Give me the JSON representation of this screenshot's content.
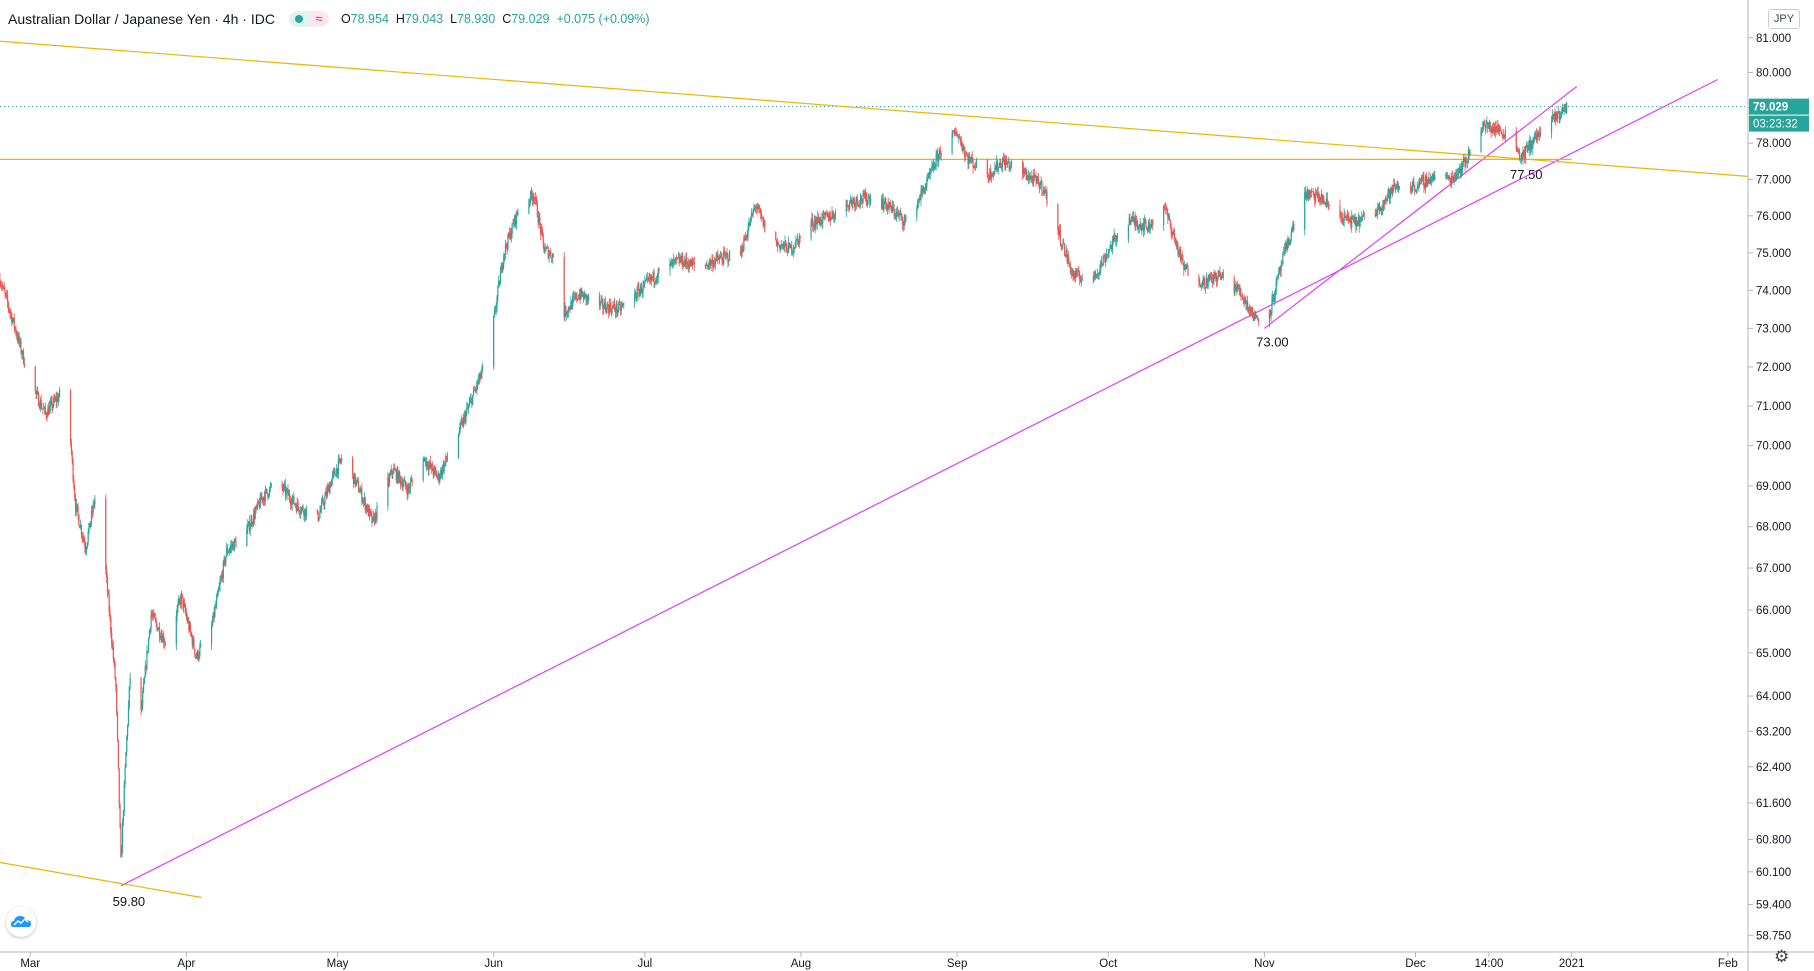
{
  "header": {
    "symbol_title": "Australian Dollar / Japanese Yen · 4h · IDC",
    "o_label": "O",
    "o_value": "78.954",
    "h_label": "H",
    "h_value": "79.043",
    "l_label": "L",
    "l_value": "78.930",
    "c_label": "C",
    "c_value": "79.029",
    "change": "+0.075 (+0.09%)"
  },
  "currency_button": "JPY",
  "countdown": "03:23:32",
  "colors": {
    "up": "#26a69a",
    "down": "#ef5350",
    "support": "#e040fb",
    "resistance": "#f0b400",
    "axis": "#131722"
  },
  "chart_data": {
    "type": "candlestick",
    "timeframe": "4h",
    "last_price": 79.029,
    "y_scale": "log",
    "ylim": [
      58.4,
      81.4
    ],
    "y_ticks": [
      "81.000",
      "80.000",
      "79.000",
      "78.000",
      "77.000",
      "76.000",
      "75.000",
      "74.000",
      "73.000",
      "72.000",
      "71.000",
      "70.000",
      "69.000",
      "68.000",
      "67.000",
      "66.000",
      "65.000",
      "64.000",
      "63.200",
      "62.400",
      "61.600",
      "60.800",
      "60.100",
      "59.400",
      "58.750"
    ],
    "x_ticks": [
      {
        "label": "Mar",
        "date": "2020-03-01"
      },
      {
        "label": "Apr",
        "date": "2020-04-01"
      },
      {
        "label": "May",
        "date": "2020-05-01"
      },
      {
        "label": "Jun",
        "date": "2020-06-01"
      },
      {
        "label": "Jul",
        "date": "2020-07-01"
      },
      {
        "label": "Aug",
        "date": "2020-08-01"
      },
      {
        "label": "Sep",
        "date": "2020-09-01"
      },
      {
        "label": "Oct",
        "date": "2020-10-01"
      },
      {
        "label": "Nov",
        "date": "2020-11-01"
      },
      {
        "label": "Dec",
        "date": "2020-12-01"
      },
      {
        "label": "14:00",
        "date": "2020-12-15T14:00"
      },
      {
        "label": "2021",
        "date": "2021-01-01"
      },
      {
        "label": "Feb",
        "date": "2021-02-01"
      }
    ],
    "xlim": [
      "2020-02-24",
      "2021-02-05"
    ],
    "path": [
      [
        "2020-02-24",
        74.3
      ],
      [
        "2020-02-27",
        73.0
      ],
      [
        "2020-03-01",
        71.6
      ],
      [
        "2020-03-04",
        70.8
      ],
      [
        "2020-03-07",
        71.3
      ],
      [
        "2020-03-09",
        70.1
      ],
      [
        "2020-03-10",
        68.5
      ],
      [
        "2020-03-12",
        67.5
      ],
      [
        "2020-03-14",
        68.8
      ],
      [
        "2020-03-16",
        66.9
      ],
      [
        "2020-03-18",
        64.2
      ],
      [
        "2020-03-19",
        60.3
      ],
      [
        "2020-03-20",
        62.7
      ],
      [
        "2020-03-21",
        64.8
      ],
      [
        "2020-03-23",
        63.6
      ],
      [
        "2020-03-25",
        65.9
      ],
      [
        "2020-03-28",
        65.2
      ],
      [
        "2020-03-31",
        66.3
      ],
      [
        "2020-04-03",
        64.9
      ],
      [
        "2020-04-06",
        65.6
      ],
      [
        "2020-04-09",
        67.4
      ],
      [
        "2020-04-13",
        67.9
      ],
      [
        "2020-04-16",
        68.7
      ],
      [
        "2020-04-19",
        69.1
      ],
      [
        "2020-04-23",
        68.5
      ],
      [
        "2020-04-27",
        68.2
      ],
      [
        "2020-04-30",
        69.2
      ],
      [
        "2020-05-02",
        69.7
      ],
      [
        "2020-05-05",
        69.0
      ],
      [
        "2020-05-08",
        68.1
      ],
      [
        "2020-05-12",
        69.4
      ],
      [
        "2020-05-15",
        68.9
      ],
      [
        "2020-05-18",
        69.7
      ],
      [
        "2020-05-21",
        69.2
      ],
      [
        "2020-05-25",
        70.3
      ],
      [
        "2020-05-28",
        71.3
      ],
      [
        "2020-05-31",
        72.3
      ],
      [
        "2020-06-03",
        75.0
      ],
      [
        "2020-06-06",
        76.2
      ],
      [
        "2020-06-09",
        76.6
      ],
      [
        "2020-06-11",
        75.1
      ],
      [
        "2020-06-13",
        74.9
      ],
      [
        "2020-06-15",
        73.4
      ],
      [
        "2020-06-18",
        73.9
      ],
      [
        "2020-06-22",
        73.6
      ],
      [
        "2020-06-26",
        73.5
      ],
      [
        "2020-06-30",
        74.0
      ],
      [
        "2020-07-04",
        74.5
      ],
      [
        "2020-07-08",
        74.8
      ],
      [
        "2020-07-12",
        74.6
      ],
      [
        "2020-07-15",
        74.8
      ],
      [
        "2020-07-20",
        75.0
      ],
      [
        "2020-07-23",
        76.3
      ],
      [
        "2020-07-26",
        75.3
      ],
      [
        "2020-07-30",
        75.1
      ],
      [
        "2020-08-03",
        75.8
      ],
      [
        "2020-08-07",
        76.0
      ],
      [
        "2020-08-11",
        76.4
      ],
      [
        "2020-08-15",
        76.5
      ],
      [
        "2020-08-18",
        76.3
      ],
      [
        "2020-08-22",
        75.8
      ],
      [
        "2020-08-26",
        76.9
      ],
      [
        "2020-08-29",
        77.9
      ],
      [
        "2020-09-01",
        78.3
      ],
      [
        "2020-09-03",
        77.6
      ],
      [
        "2020-09-07",
        77.1
      ],
      [
        "2020-09-10",
        77.5
      ],
      [
        "2020-09-14",
        77.2
      ],
      [
        "2020-09-18",
        76.8
      ],
      [
        "2020-09-21",
        75.6
      ],
      [
        "2020-09-24",
        74.4
      ],
      [
        "2020-09-28",
        74.3
      ],
      [
        "2020-10-02",
        75.3
      ],
      [
        "2020-10-05",
        75.9
      ],
      [
        "2020-10-09",
        75.7
      ],
      [
        "2020-10-12",
        76.3
      ],
      [
        "2020-10-16",
        74.6
      ],
      [
        "2020-10-20",
        74.2
      ],
      [
        "2020-10-23",
        74.4
      ],
      [
        "2020-10-27",
        74.0
      ],
      [
        "2020-10-30",
        73.3
      ],
      [
        "2020-11-02",
        73.4
      ],
      [
        "2020-11-05",
        75.0
      ],
      [
        "2020-11-09",
        76.6
      ],
      [
        "2020-11-12",
        76.5
      ],
      [
        "2020-11-16",
        76.0
      ],
      [
        "2020-11-19",
        75.8
      ],
      [
        "2020-11-23",
        76.1
      ],
      [
        "2020-11-27",
        76.8
      ],
      [
        "2020-12-01",
        76.8
      ],
      [
        "2020-12-05",
        77.1
      ],
      [
        "2020-12-08",
        77.0
      ],
      [
        "2020-12-11",
        77.5
      ],
      [
        "2020-12-14",
        78.5
      ],
      [
        "2020-12-17",
        78.4
      ],
      [
        "2020-12-20",
        78.2
      ],
      [
        "2020-12-22",
        77.6
      ],
      [
        "2020-12-25",
        78.2
      ],
      [
        "2020-12-28",
        78.6
      ],
      [
        "2020-12-31",
        79.03
      ]
    ],
    "price_labels": [
      {
        "text": "59.80",
        "date": "2020-03-19",
        "price": 59.8
      },
      {
        "text": "73.00",
        "date": "2020-11-01",
        "price": 73.0
      },
      {
        "text": "77.50",
        "date": "2020-12-21",
        "price": 77.5
      }
    ],
    "trend_lines": [
      {
        "role": "support",
        "from": [
          "2020-03-19",
          59.8
        ],
        "to": [
          "2021-01-30",
          79.8
        ]
      },
      {
        "role": "support",
        "from": [
          "2020-11-01",
          73.0
        ],
        "to": [
          "2021-01-02",
          79.6
        ]
      },
      {
        "role": "resistance",
        "from": [
          "2020-02-24",
          80.9
        ],
        "to": [
          "2021-02-05",
          77.08
        ]
      },
      {
        "role": "resistance",
        "from": [
          "2020-02-24",
          77.55
        ],
        "to": [
          "2021-01-01",
          77.55
        ]
      },
      {
        "role": "resistance",
        "from": [
          "2020-02-24",
          60.3
        ],
        "to": [
          "2020-04-04",
          59.55
        ]
      }
    ]
  }
}
